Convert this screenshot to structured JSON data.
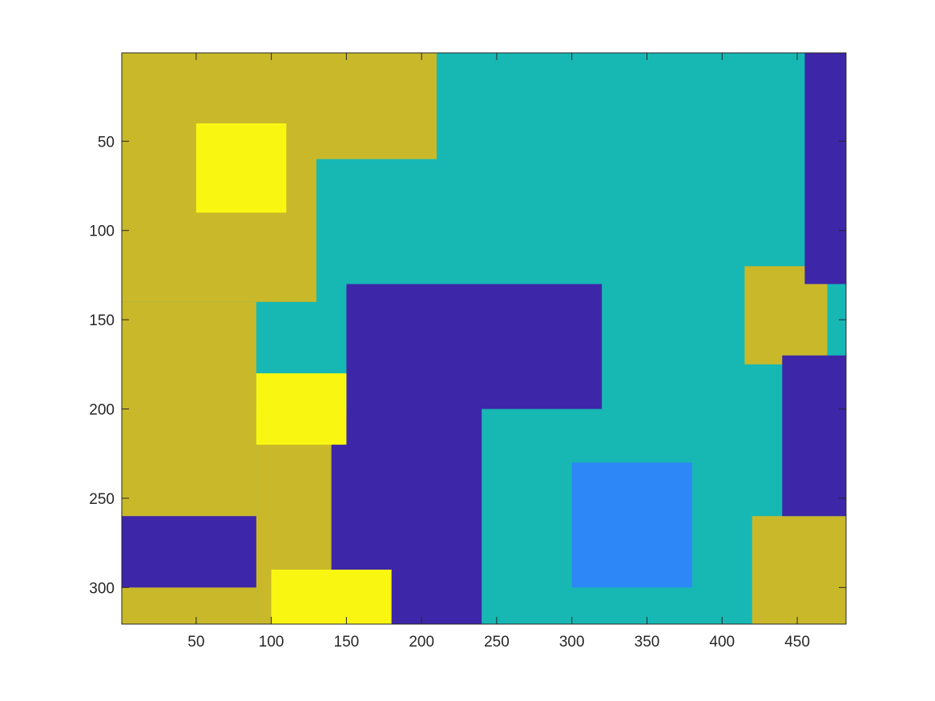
{
  "chart_data": {
    "type": "heatmap",
    "title": "",
    "xlabel": "",
    "ylabel": "",
    "x_range": [
      0.5,
      482.5
    ],
    "y_range": [
      0.5,
      320.5
    ],
    "y_reversed": true,
    "x_ticks": [
      50,
      100,
      150,
      200,
      250,
      300,
      350,
      400,
      450
    ],
    "y_ticks": [
      50,
      100,
      150,
      200,
      250,
      300
    ],
    "grid": false,
    "colorbar": false,
    "classes": [
      {
        "index": 1,
        "color": "#3d26a8"
      },
      {
        "index": 2,
        "color": "#2e87f6"
      },
      {
        "index": 3,
        "color": "#17b8b4"
      },
      {
        "index": 4,
        "color": "#c9b92a"
      },
      {
        "index": 5,
        "color": "#f9f712"
      }
    ],
    "regions": [
      {
        "class": 3,
        "x": [
          0.5,
          482.5
        ],
        "y": [
          0.5,
          320.5
        ]
      },
      {
        "class": 4,
        "x": [
          0.5,
          130
        ],
        "y": [
          0.5,
          140
        ]
      },
      {
        "class": 4,
        "x": [
          100,
          210
        ],
        "y": [
          0.5,
          60
        ]
      },
      {
        "class": 4,
        "x": [
          0.5,
          90
        ],
        "y": [
          140,
          320.5
        ]
      },
      {
        "class": 4,
        "x": [
          90,
          180
        ],
        "y": [
          200,
          320.5
        ]
      },
      {
        "class": 4,
        "x": [
          420,
          482.5
        ],
        "y": [
          260,
          320.5
        ]
      },
      {
        "class": 4,
        "x": [
          415,
          470
        ],
        "y": [
          120,
          175
        ]
      },
      {
        "class": 1,
        "x": [
          150,
          320
        ],
        "y": [
          130,
          200
        ]
      },
      {
        "class": 1,
        "x": [
          140,
          240
        ],
        "y": [
          200,
          320.5
        ]
      },
      {
        "class": 1,
        "x": [
          440,
          482.5
        ],
        "y": [
          170,
          260
        ]
      },
      {
        "class": 1,
        "x": [
          455,
          482.5
        ],
        "y": [
          0.5,
          130
        ]
      },
      {
        "class": 1,
        "x": [
          0.5,
          90
        ],
        "y": [
          260,
          300
        ]
      },
      {
        "class": 5,
        "x": [
          100,
          180
        ],
        "y": [
          290,
          320.5
        ]
      },
      {
        "class": 5,
        "x": [
          50,
          110
        ],
        "y": [
          40,
          90
        ]
      },
      {
        "class": 5,
        "x": [
          90,
          150
        ],
        "y": [
          180,
          220
        ]
      },
      {
        "class": 2,
        "x": [
          300,
          380
        ],
        "y": [
          230,
          300
        ]
      }
    ]
  }
}
